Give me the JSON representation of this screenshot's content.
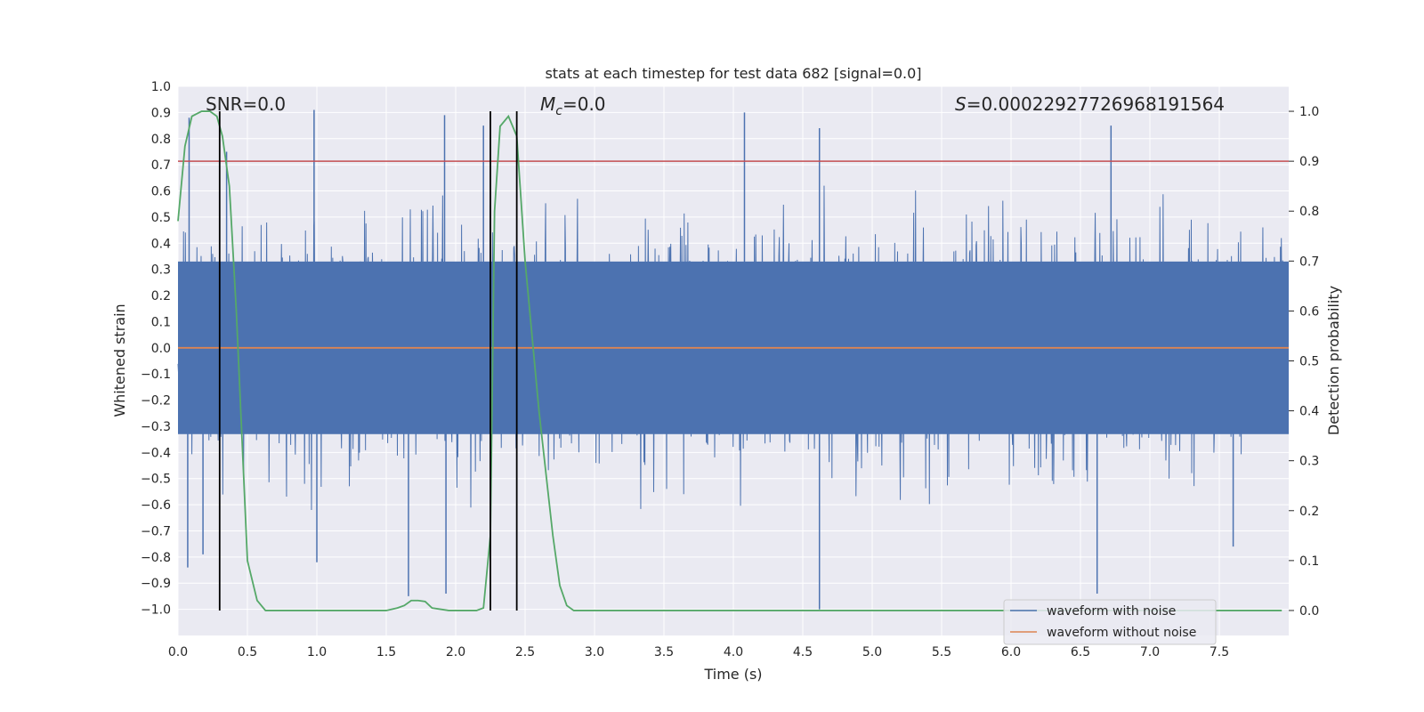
{
  "chart_data": {
    "type": "line",
    "title": "stats at each timestep for test data 682 [signal=0.0]",
    "xlabel": "Time (s)",
    "ylabel_left": "Whitened strain",
    "ylabel_right": "Detection probability",
    "xlim": [
      0.0,
      8.0
    ],
    "ylim_left": [
      -1.1,
      1.0
    ],
    "ylim_right": [
      -0.05,
      1.05
    ],
    "x_ticks": [
      "0.0",
      "0.5",
      "1.0",
      "1.5",
      "2.0",
      "2.5",
      "3.0",
      "3.5",
      "4.0",
      "4.5",
      "5.0",
      "5.5",
      "6.0",
      "6.5",
      "7.0",
      "7.5"
    ],
    "y_left_ticks": [
      "1.0",
      "0.9",
      "0.8",
      "0.7",
      "0.6",
      "0.5",
      "0.4",
      "0.3",
      "0.2",
      "0.1",
      "0.0",
      "−0.1",
      "−0.2",
      "−0.3",
      "−0.4",
      "−0.5",
      "−0.6",
      "−0.7",
      "−0.8",
      "−0.9",
      "−1.0"
    ],
    "y_right_ticks": [
      "1.0",
      "0.9",
      "0.8",
      "0.7",
      "0.6",
      "0.5",
      "0.4",
      "0.3",
      "0.2",
      "0.1",
      "0.0"
    ],
    "annotations": {
      "snr": "SNR=0.0",
      "mc_symbol": "M",
      "mc_sub": "c",
      "mc_value": "=0.0",
      "s_symbol": "S",
      "s_value": "=0.00022927726968191564"
    },
    "threshold": 0.9,
    "vertical_lines": [
      0.3,
      2.25,
      2.44
    ],
    "legend": {
      "placement": "lower-right",
      "entries": [
        "waveform with noise",
        "waveform without noise"
      ]
    },
    "series": [
      {
        "name": "waveform with noise",
        "axis": "left",
        "color": "#4c72b0",
        "description": "dense Gaussian-like noise, approx ±0.4 with spikes to ±0.9",
        "amplitude_typical": 0.35,
        "spikes": [
          {
            "x": 0.08,
            "y": 0.88
          },
          {
            "x": 0.07,
            "y": -0.84
          },
          {
            "x": 0.18,
            "y": -0.79
          },
          {
            "x": 0.35,
            "y": 0.75
          },
          {
            "x": 0.98,
            "y": 0.91
          },
          {
            "x": 1.0,
            "y": -0.82
          },
          {
            "x": 1.66,
            "y": -0.95
          },
          {
            "x": 1.92,
            "y": 0.89
          },
          {
            "x": 1.93,
            "y": -0.94
          },
          {
            "x": 2.2,
            "y": 0.85
          },
          {
            "x": 4.08,
            "y": 0.9
          },
          {
            "x": 4.62,
            "y": 0.84
          },
          {
            "x": 4.62,
            "y": -1.0
          },
          {
            "x": 6.62,
            "y": -0.94
          },
          {
            "x": 6.72,
            "y": 0.85
          },
          {
            "x": 7.6,
            "y": -0.76
          }
        ]
      },
      {
        "name": "waveform without noise",
        "axis": "left",
        "color": "#dd8452",
        "x": [
          0.0,
          8.0
        ],
        "y": [
          0.0,
          0.0
        ]
      },
      {
        "name": "detection probability",
        "axis": "right",
        "color": "#55a868",
        "x": [
          0.0,
          0.05,
          0.1,
          0.17,
          0.23,
          0.28,
          0.32,
          0.37,
          0.42,
          0.5,
          0.57,
          0.63,
          0.7,
          1.0,
          1.5,
          1.58,
          1.63,
          1.68,
          1.73,
          1.78,
          1.83,
          1.95,
          2.15,
          2.2,
          2.25,
          2.28,
          2.32,
          2.38,
          2.44,
          2.5,
          2.6,
          2.7,
          2.75,
          2.8,
          2.85,
          3.0,
          4.0,
          5.0,
          6.0,
          7.0,
          7.95
        ],
        "y": [
          0.78,
          0.93,
          0.99,
          1.0,
          1.0,
          0.99,
          0.95,
          0.85,
          0.6,
          0.1,
          0.02,
          0.0,
          0.0,
          0.0,
          0.0,
          0.005,
          0.01,
          0.02,
          0.02,
          0.018,
          0.005,
          0.0,
          0.0,
          0.005,
          0.15,
          0.8,
          0.97,
          0.99,
          0.95,
          0.7,
          0.4,
          0.15,
          0.05,
          0.01,
          0.0,
          0.0,
          0.0,
          0.0,
          0.0,
          0.0,
          0.0
        ]
      },
      {
        "name": "threshold",
        "axis": "right",
        "color": "#c44e52",
        "x": [
          0.0,
          8.0
        ],
        "y": [
          0.9,
          0.9
        ]
      }
    ]
  }
}
